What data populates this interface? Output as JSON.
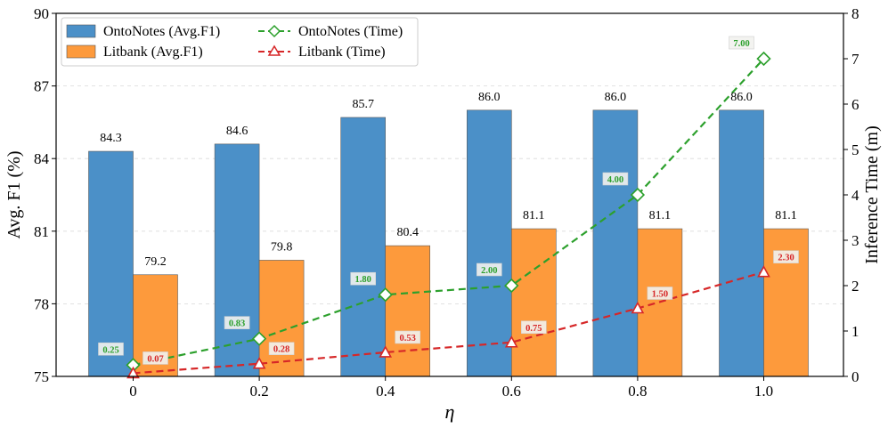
{
  "chart_data": {
    "type": "bar",
    "categories": [
      "0",
      "0.2",
      "0.4",
      "0.6",
      "0.8",
      "1.0"
    ],
    "xlabel": "η",
    "ylabel": "Avg. F1 (%)",
    "y2label": "Inference Time (m)",
    "ylim": [
      75,
      90
    ],
    "yticks": [
      "75",
      "78",
      "81",
      "84",
      "87",
      "90"
    ],
    "y2lim": [
      0,
      8
    ],
    "y2ticks": [
      "0",
      "1",
      "2",
      "3",
      "4",
      "5",
      "6",
      "7",
      "8"
    ],
    "grid": "horizontal dashed",
    "legend_position": "top-left",
    "bar_series": [
      {
        "name": "OntoNotes (Avg.F1)",
        "color": "#4b90c8",
        "values": [
          84.3,
          84.6,
          85.7,
          86.0,
          86.0,
          86.0
        ],
        "labels": [
          "84.3",
          "84.6",
          "85.7",
          "86.0",
          "86.0",
          "86.0"
        ]
      },
      {
        "name": "Litbank (Avg.F1)",
        "color": "#fd9a3c",
        "values": [
          79.2,
          79.8,
          80.4,
          81.1,
          81.1,
          81.1
        ],
        "labels": [
          "79.2",
          "79.8",
          "80.4",
          "81.1",
          "81.1",
          "81.1"
        ]
      }
    ],
    "line_series": [
      {
        "name": "OntoNotes (Time)",
        "color": "#2ca02c",
        "marker": "diamond",
        "values": [
          0.25,
          0.83,
          1.8,
          2.0,
          4.0,
          7.0
        ],
        "labels": [
          "0.25",
          "0.83",
          "1.80",
          "2.00",
          "4.00",
          "7.00"
        ]
      },
      {
        "name": "Litbank (Time)",
        "color": "#d62728",
        "marker": "triangle",
        "values": [
          0.07,
          0.28,
          0.53,
          0.75,
          1.5,
          2.3
        ],
        "labels": [
          "0.07",
          "0.28",
          "0.53",
          "0.75",
          "1.50",
          "2.30"
        ]
      }
    ]
  }
}
